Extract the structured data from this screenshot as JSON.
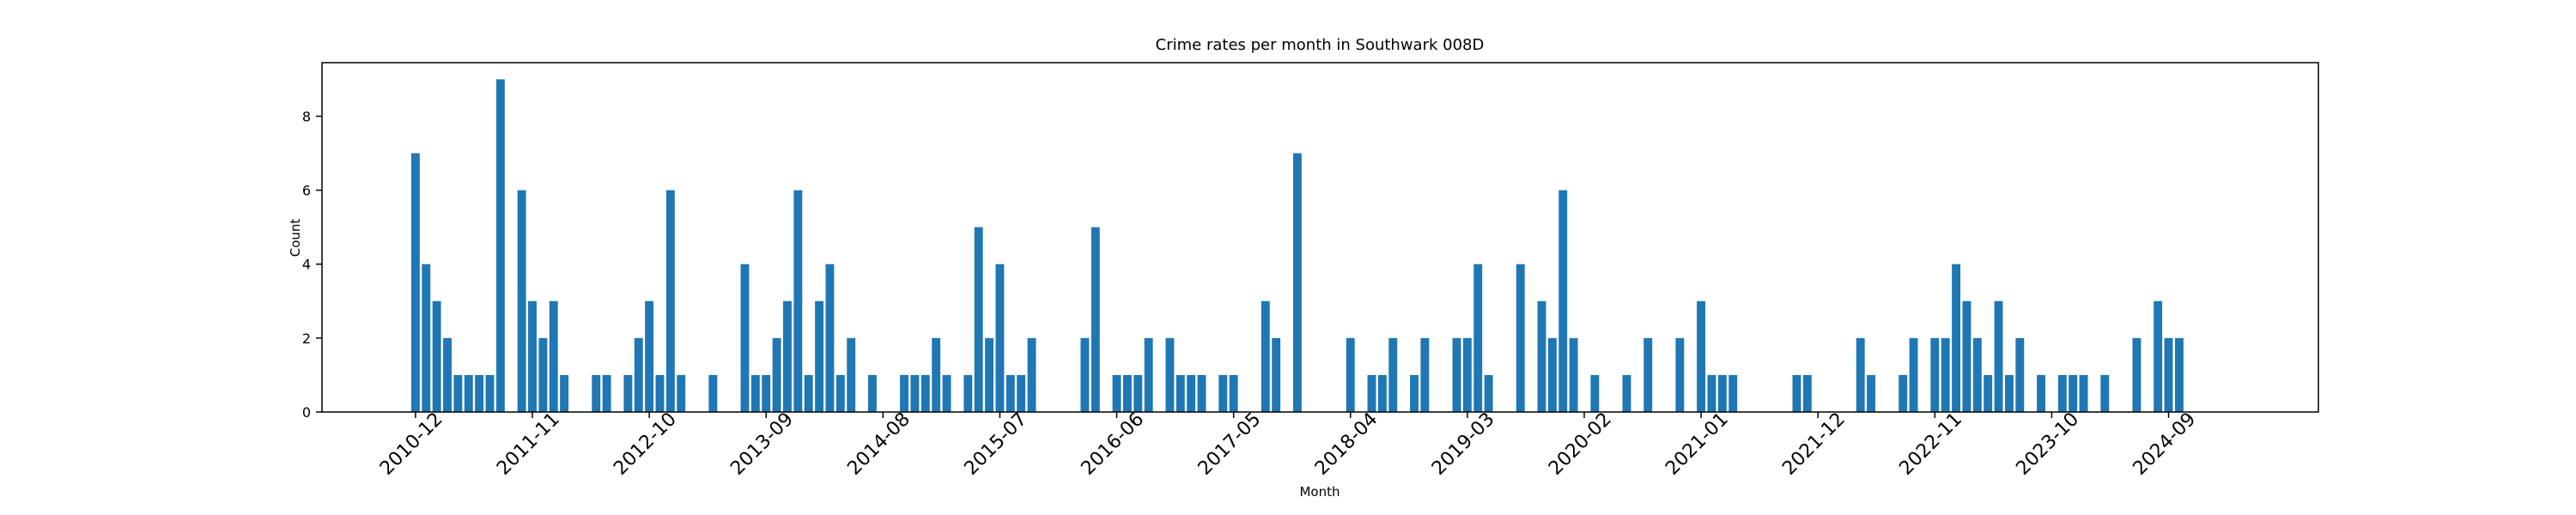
{
  "chart_data": {
    "type": "bar",
    "title": "Crime rates per month in Southwark 008D",
    "x_label": "Month",
    "y_label": "Count",
    "color": "#1f77b4",
    "categories": [
      "2010-12",
      null,
      null,
      null,
      null,
      null,
      null,
      null,
      null,
      null,
      null,
      "2011-11",
      null,
      null,
      null,
      null,
      null,
      null,
      null,
      null,
      null,
      null,
      "2012-10",
      null,
      null,
      null,
      null,
      null,
      null,
      null,
      null,
      null,
      null,
      "2013-09",
      null,
      null,
      null,
      null,
      null,
      null,
      null,
      null,
      null,
      null,
      "2014-08",
      null,
      null,
      null,
      null,
      null,
      null,
      null,
      null,
      null,
      null,
      "2015-07",
      null,
      null,
      null,
      null,
      null,
      null,
      null,
      null,
      null,
      null,
      "2016-06",
      null,
      null,
      null,
      null,
      null,
      null,
      null,
      null,
      null,
      null,
      "2017-05",
      null,
      null,
      null,
      null,
      null,
      null,
      null,
      null,
      null,
      null,
      "2018-04",
      null,
      null,
      null,
      null,
      null,
      null,
      null,
      null,
      null,
      null,
      "2019-03",
      null,
      null,
      null,
      null,
      null,
      null,
      null,
      null,
      null,
      null,
      "2020-02",
      null,
      null,
      null,
      null,
      null,
      null,
      null,
      null,
      null,
      null,
      "2021-01",
      null,
      null,
      null,
      null,
      null,
      null,
      null,
      null,
      null,
      null,
      "2021-12",
      null,
      null,
      null,
      null,
      null,
      null,
      null,
      null,
      null,
      null,
      "2022-11",
      null,
      null,
      null,
      null,
      null,
      null,
      null,
      null,
      null,
      null,
      "2023-10",
      null,
      null,
      null,
      null,
      null,
      null,
      null,
      null,
      null,
      null,
      "2024-09",
      null
    ],
    "values": [
      7,
      4,
      3,
      2,
      1,
      1,
      1,
      1,
      9,
      0,
      6,
      3,
      2,
      3,
      1,
      0,
      0,
      1,
      1,
      0,
      1,
      2,
      3,
      1,
      6,
      1,
      0,
      0,
      1,
      0,
      0,
      4,
      1,
      1,
      2,
      3,
      6,
      1,
      3,
      4,
      1,
      2,
      0,
      1,
      0,
      0,
      1,
      1,
      1,
      2,
      1,
      0,
      1,
      5,
      2,
      4,
      1,
      1,
      2,
      0,
      0,
      0,
      0,
      2,
      5,
      0,
      1,
      1,
      1,
      2,
      0,
      2,
      1,
      1,
      1,
      0,
      1,
      1,
      0,
      0,
      3,
      2,
      0,
      7,
      0,
      0,
      0,
      0,
      2,
      0,
      1,
      1,
      2,
      0,
      1,
      2,
      0,
      0,
      2,
      2,
      4,
      1,
      0,
      0,
      4,
      0,
      3,
      2,
      6,
      2,
      0,
      1,
      0,
      0,
      1,
      0,
      2,
      0,
      0,
      2,
      0,
      3,
      1,
      1,
      1,
      0,
      0,
      0,
      0,
      0,
      1,
      1,
      0,
      0,
      0,
      0,
      2,
      1,
      0,
      0,
      1,
      2,
      0,
      2,
      2,
      4,
      3,
      2,
      1,
      3,
      1,
      2,
      0,
      1,
      0,
      1,
      1,
      1,
      0,
      1,
      0,
      0,
      2,
      0,
      3,
      2,
      2
    ],
    "ylim": [
      0,
      9.45
    ],
    "yticks": [
      0,
      2,
      4,
      6,
      8
    ]
  }
}
